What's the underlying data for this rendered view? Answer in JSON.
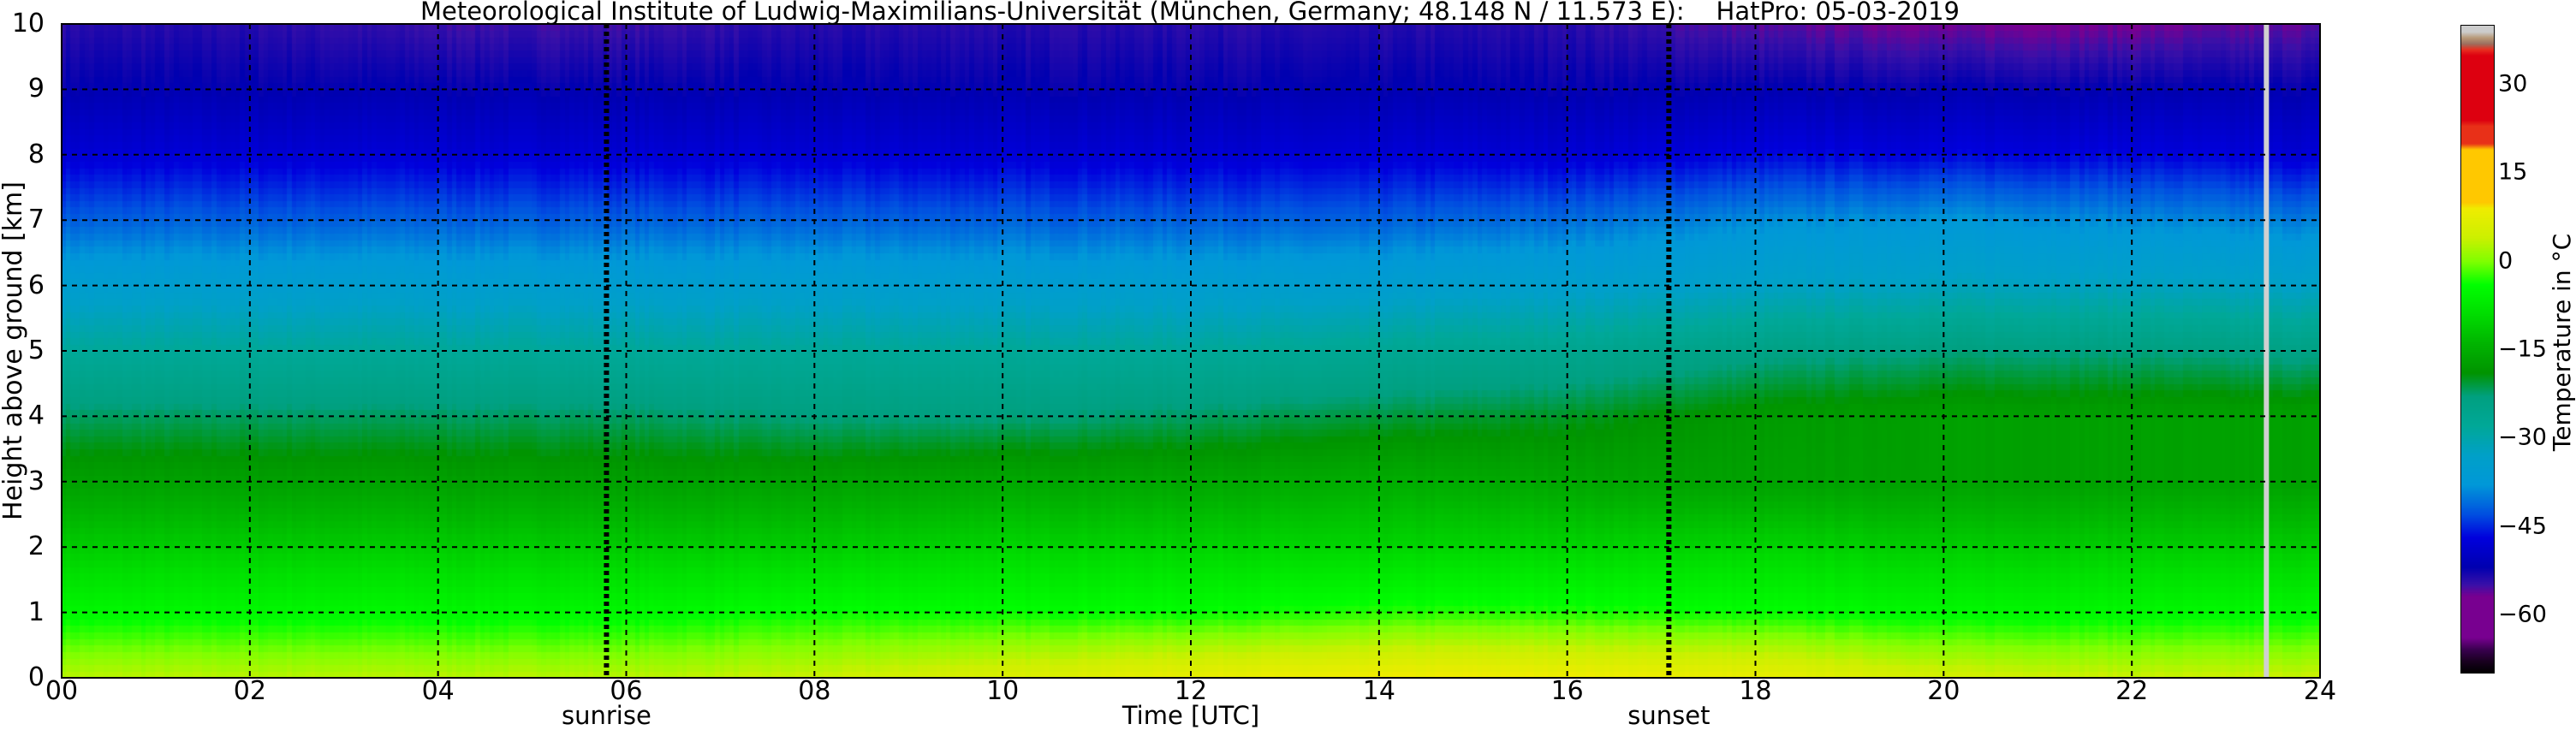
{
  "chart_data": {
    "type": "heatmap",
    "title": "Meteorological Institute of Ludwig-Maximilians-Universität (München, Germany; 48.148 N / 11.573 E):    HatPro: 05-03-2019",
    "xlabel": "Time [UTC]",
    "ylabel": "Height above ground [km]",
    "xlim": [
      0,
      24
    ],
    "ylim": [
      0,
      10
    ],
    "x_ticks": [
      "00",
      "02",
      "04",
      "06",
      "08",
      "10",
      "12",
      "14",
      "16",
      "18",
      "20",
      "22",
      "24"
    ],
    "y_ticks": [
      "0",
      "1",
      "2",
      "3",
      "4",
      "5",
      "6",
      "7",
      "8",
      "9",
      "10"
    ],
    "grid": true,
    "times": [
      0,
      2,
      4,
      6,
      8,
      10,
      12,
      14,
      16,
      18,
      20,
      22,
      24
    ],
    "heights": [
      0,
      1,
      2,
      3,
      4,
      5,
      6,
      7,
      8,
      9,
      10
    ],
    "temperature": [
      [
        3,
        3,
        3,
        3,
        4,
        6,
        8,
        9,
        9,
        8,
        5,
        4,
        4
      ],
      [
        -5,
        -5,
        -5,
        -5,
        -4,
        -4,
        -4,
        -3,
        -3,
        -4,
        -5,
        -5,
        -5
      ],
      [
        -11,
        -11,
        -11,
        -11,
        -11,
        -10,
        -10,
        -10,
        -10,
        -10,
        -11,
        -11,
        -11
      ],
      [
        -17,
        -17,
        -17,
        -17,
        -17,
        -16,
        -16,
        -15,
        -16,
        -17,
        -17,
        -17,
        -17
      ],
      [
        -22,
        -22,
        -22,
        -22,
        -23,
        -23,
        -22,
        -21,
        -20,
        -18,
        -17,
        -17,
        -17
      ],
      [
        -28,
        -28,
        -28,
        -28,
        -28,
        -28,
        -28,
        -27,
        -26,
        -24,
        -23,
        -23,
        -24
      ],
      [
        -35,
        -35,
        -35,
        -35,
        -35,
        -35,
        -35,
        -35,
        -34,
        -33,
        -32,
        -32,
        -33
      ],
      [
        -42,
        -42,
        -42,
        -42,
        -42,
        -42,
        -42,
        -42,
        -41,
        -39,
        -38,
        -39,
        -40
      ],
      [
        -48,
        -48,
        -48,
        -48,
        -48,
        -48,
        -48,
        -48,
        -48,
        -47,
        -47,
        -47,
        -48
      ],
      [
        -52,
        -52,
        -52,
        -52,
        -52,
        -52,
        -52,
        -52,
        -52,
        -52,
        -52,
        -52,
        -52
      ],
      [
        -54,
        -54,
        -55,
        -55,
        -54,
        -54,
        -54,
        -54,
        -54,
        -56,
        -57,
        -57,
        -56
      ]
    ],
    "events": [
      {
        "label": "sunrise",
        "time": 5.79
      },
      {
        "label": "sunset",
        "time": 17.08
      }
    ],
    "missing_data_time": 23.43,
    "colorbar": {
      "label": "Temperature in °C",
      "range": [
        -70,
        40
      ],
      "ticks": [
        "30",
        "15",
        "0",
        "−15",
        "−30",
        "−45",
        "−60"
      ],
      "tick_values": [
        30,
        15,
        0,
        -15,
        -30,
        -45,
        -60
      ],
      "colors": [
        [
          -70,
          "#000000"
        ],
        [
          -68,
          "#1a0020"
        ],
        [
          -66,
          "#3a0050"
        ],
        [
          -64,
          "#780090"
        ],
        [
          -57,
          "#780090"
        ],
        [
          -55,
          "#3a10a8"
        ],
        [
          -52,
          "#0000b0"
        ],
        [
          -47,
          "#0000dd"
        ],
        [
          -43,
          "#0050e0"
        ],
        [
          -38,
          "#0098d8"
        ],
        [
          -33,
          "#00a0c8"
        ],
        [
          -28,
          "#00a898"
        ],
        [
          -23,
          "#00a080"
        ],
        [
          -19,
          "#009400"
        ],
        [
          -14,
          "#00b400"
        ],
        [
          -9,
          "#00dd00"
        ],
        [
          -4,
          "#00ff00"
        ],
        [
          0,
          "#80ff00"
        ],
        [
          4,
          "#ccf000"
        ],
        [
          9,
          "#f0ec00"
        ],
        [
          10,
          "#ffc800"
        ],
        [
          19,
          "#ffc800"
        ],
        [
          20,
          "#e83018"
        ],
        [
          23,
          "#e83018"
        ],
        [
          24,
          "#dd0010"
        ],
        [
          35,
          "#dd0010"
        ],
        [
          36,
          "#e83020"
        ],
        [
          37,
          "#9c7060"
        ],
        [
          38,
          "#b89a78"
        ],
        [
          39,
          "#cccccc"
        ],
        [
          40,
          "#cccccc"
        ]
      ]
    }
  }
}
